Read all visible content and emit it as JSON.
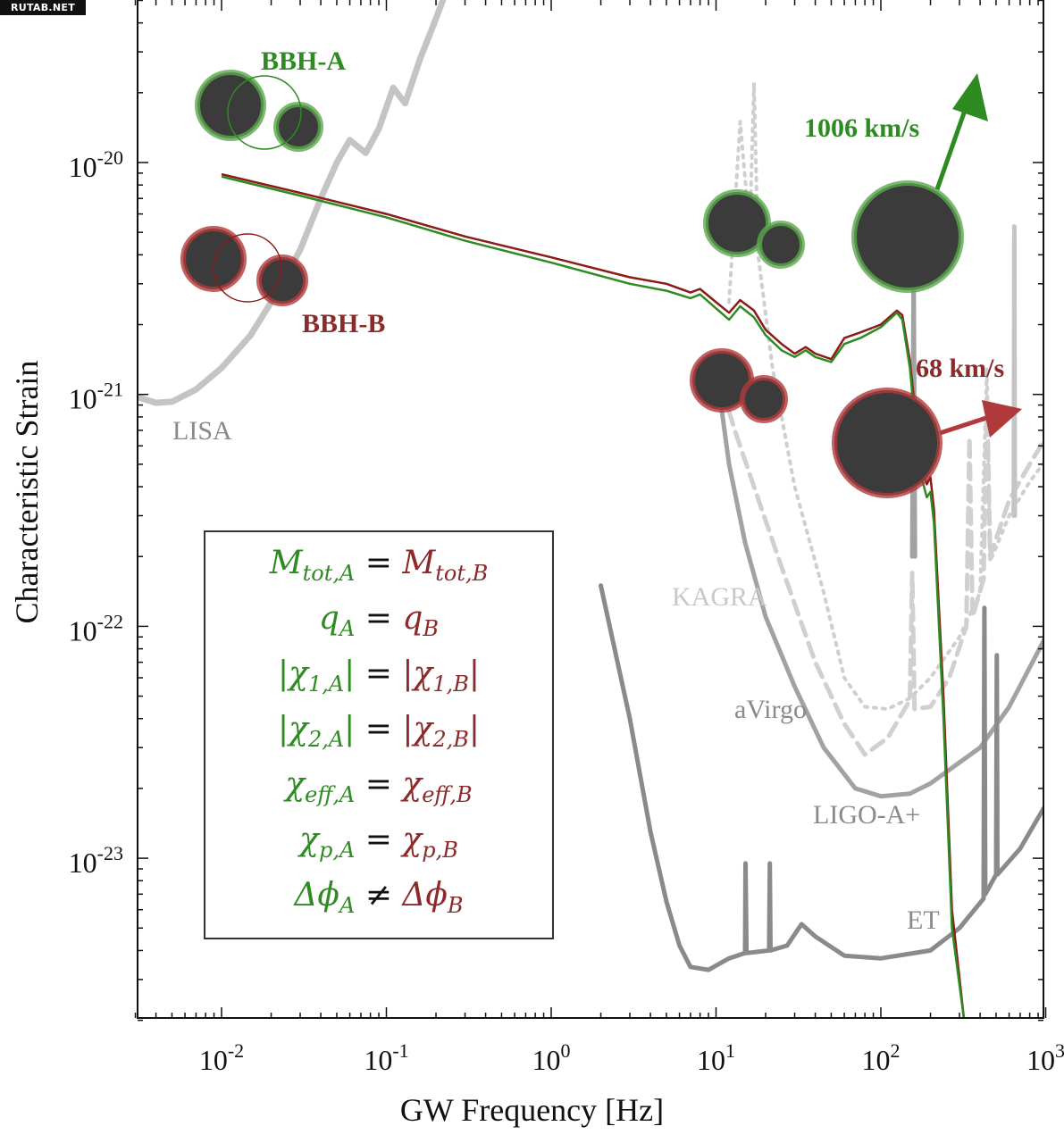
{
  "watermark": "RUTAB.NET",
  "chart_data": {
    "type": "line",
    "xlabel": "GW Frequency [Hz]",
    "ylabel": "Characteristic Strain",
    "x_scale": "log",
    "y_scale": "log",
    "xlim": [
      0.003,
      1000
    ],
    "ylim": [
      2e-24,
      5e-20
    ],
    "x_ticks": [
      {
        "value": 0.01,
        "base": "10",
        "exp": "-2"
      },
      {
        "value": 0.1,
        "base": "10",
        "exp": "-1"
      },
      {
        "value": 1,
        "base": "10",
        "exp": "0"
      },
      {
        "value": 10,
        "base": "10",
        "exp": "1"
      },
      {
        "value": 100,
        "base": "10",
        "exp": "2"
      },
      {
        "value": 1000,
        "base": "10",
        "exp": "3"
      }
    ],
    "y_ticks": [
      {
        "value": 1e-20,
        "base": "10",
        "exp": "-20"
      },
      {
        "value": 1e-21,
        "base": "10",
        "exp": "-21"
      },
      {
        "value": 1e-22,
        "base": "10",
        "exp": "-22"
      },
      {
        "value": 1e-23,
        "base": "10",
        "exp": "-23"
      }
    ],
    "detector_labels": {
      "lisa": "LISA",
      "kagra": "KAGRA",
      "avirgo": "aVirgo",
      "ligo": "LIGO-A+",
      "et": "ET"
    },
    "sensitivity_curves": [
      {
        "name": "LISA",
        "color": "#c4c4c4",
        "style": "solid",
        "points": [
          [
            0.003,
            9.8e-22
          ],
          [
            0.004,
            9.2e-22
          ],
          [
            0.005,
            9.3e-22
          ],
          [
            0.007,
            1.05e-21
          ],
          [
            0.01,
            1.3e-21
          ],
          [
            0.015,
            1.8e-21
          ],
          [
            0.02,
            2.5e-21
          ],
          [
            0.03,
            4.2e-21
          ],
          [
            0.04,
            7e-21
          ],
          [
            0.05,
            1e-20
          ],
          [
            0.06,
            1.25e-20
          ],
          [
            0.075,
            1.1e-20
          ],
          [
            0.09,
            1.4e-20
          ],
          [
            0.11,
            2.1e-20
          ],
          [
            0.13,
            1.8e-20
          ],
          [
            0.16,
            2.8e-20
          ],
          [
            0.19,
            3.8e-20
          ],
          [
            0.22,
            5e-20
          ]
        ]
      },
      {
        "name": "KAGRA",
        "color": "#d0d0d0",
        "style": "dashed",
        "points": [
          [
            10,
            1.3e-21
          ],
          [
            13,
            7e-22
          ],
          [
            17,
            4e-22
          ],
          [
            25,
            1.8e-22
          ],
          [
            40,
            7e-23
          ],
          [
            60,
            3.8e-23
          ],
          [
            80,
            2.8e-23
          ],
          [
            110,
            3.3e-23
          ],
          [
            150,
            4.8e-23
          ],
          [
            155,
            1.7e-22
          ],
          [
            160,
            4.4e-23
          ],
          [
            200,
            4.5e-23
          ],
          [
            260,
            6e-23
          ],
          [
            330,
            1e-22
          ],
          [
            345,
            6.5e-22
          ],
          [
            360,
            1.1e-22
          ],
          [
            420,
            1.6e-22
          ],
          [
            440,
            1e-21
          ],
          [
            460,
            2e-22
          ],
          [
            600,
            3.5e-22
          ],
          [
            800,
            5e-22
          ],
          [
            1000,
            6.5e-22
          ]
        ]
      },
      {
        "name": "aVirgo",
        "color": "#cfcfcf",
        "style": "dotted",
        "points": [
          [
            12,
            2.5e-21
          ],
          [
            14,
            1.5e-20
          ],
          [
            16,
            5e-21
          ],
          [
            17,
            2.2e-20
          ],
          [
            18,
            4e-21
          ],
          [
            22,
            1.3e-21
          ],
          [
            30,
            4e-22
          ],
          [
            45,
            1.4e-22
          ],
          [
            60,
            6e-23
          ],
          [
            80,
            4.5e-23
          ],
          [
            110,
            4.4e-23
          ],
          [
            150,
            4.9e-23
          ],
          [
            200,
            6e-23
          ],
          [
            300,
            9e-23
          ],
          [
            400,
            1.4e-22
          ],
          [
            440,
            1.3e-21
          ],
          [
            460,
            1.9e-22
          ],
          [
            600,
            3e-22
          ],
          [
            800,
            4.2e-22
          ],
          [
            1000,
            5.2e-22
          ]
        ]
      },
      {
        "name": "LIGO-A+",
        "color": "#a2a2a2",
        "style": "solid",
        "points": [
          [
            10,
            1.3e-21
          ],
          [
            12,
            5e-22
          ],
          [
            15,
            2.3e-22
          ],
          [
            20,
            1.1e-22
          ],
          [
            30,
            5.5e-23
          ],
          [
            45,
            3e-23
          ],
          [
            70,
            2e-23
          ],
          [
            100,
            1.85e-23
          ],
          [
            150,
            1.9e-23
          ],
          [
            200,
            2.1e-23
          ],
          [
            280,
            2.5e-23
          ],
          [
            400,
            3e-23
          ],
          [
            600,
            4.5e-23
          ],
          [
            1000,
            9e-23
          ]
        ]
      },
      {
        "name": "LIGO-A+ peak",
        "color": "#a2a2a2",
        "style": "solid",
        "points": [
          [
            155,
            2e-22
          ],
          [
            158,
            3.8e-21
          ],
          [
            161,
            2e-22
          ]
        ]
      },
      {
        "name": "LIGO-A+ peak",
        "color": "#c4c4c4",
        "style": "solid",
        "points": [
          [
            640,
            3e-22
          ],
          [
            645,
            5.3e-21
          ],
          [
            650,
            3e-22
          ]
        ]
      },
      {
        "name": "ET",
        "color": "#8a8a8a",
        "style": "solid",
        "points": [
          [
            2,
            1.5e-22
          ],
          [
            3,
            4e-23
          ],
          [
            4,
            1.3e-23
          ],
          [
            5,
            6.5e-24
          ],
          [
            6,
            4.2e-24
          ],
          [
            7,
            3.4e-24
          ],
          [
            9,
            3.3e-24
          ],
          [
            12,
            3.7e-24
          ],
          [
            15,
            3.9e-24
          ],
          [
            15.1,
            9.5e-24
          ],
          [
            15.3,
            3.9e-24
          ],
          [
            21,
            4e-24
          ],
          [
            21.2,
            9.5e-24
          ],
          [
            21.4,
            4e-24
          ],
          [
            27,
            4.2e-24
          ],
          [
            33,
            5.2e-24
          ],
          [
            40,
            4.6e-24
          ],
          [
            60,
            3.8e-24
          ],
          [
            100,
            3.7e-24
          ],
          [
            200,
            4e-24
          ],
          [
            300,
            5e-24
          ],
          [
            420,
            6.7e-24
          ],
          [
            425,
            1.2e-22
          ],
          [
            430,
            7e-24
          ],
          [
            500,
            8.5e-24
          ],
          [
            505,
            7.5e-23
          ],
          [
            510,
            8.5e-24
          ],
          [
            700,
            1.1e-23
          ],
          [
            1000,
            1.7e-23
          ]
        ]
      }
    ],
    "series": [
      {
        "name": "BBH-B",
        "color": "#8b1a1a",
        "points": [
          [
            0.01,
            8.9e-21
          ],
          [
            0.03,
            7.4e-21
          ],
          [
            0.1,
            6e-21
          ],
          [
            0.3,
            4.8e-21
          ],
          [
            1,
            3.9e-21
          ],
          [
            3,
            3.2e-21
          ],
          [
            5,
            3e-21
          ],
          [
            7,
            2.75e-21
          ],
          [
            8,
            2.85e-21
          ],
          [
            10,
            2.5e-21
          ],
          [
            12,
            2.25e-21
          ],
          [
            14,
            2.55e-21
          ],
          [
            17,
            2.3e-21
          ],
          [
            20,
            1.9e-21
          ],
          [
            25,
            1.65e-21
          ],
          [
            30,
            1.5e-21
          ],
          [
            35,
            1.6e-21
          ],
          [
            40,
            1.5e-21
          ],
          [
            50,
            1.42e-21
          ],
          [
            60,
            1.75e-21
          ],
          [
            75,
            1.85e-21
          ],
          [
            100,
            2e-21
          ],
          [
            125,
            2.3e-21
          ],
          [
            135,
            2.2e-21
          ],
          [
            150,
            1.4e-21
          ],
          [
            160,
            9e-22
          ],
          [
            175,
            5e-22
          ],
          [
            190,
            4.1e-22
          ],
          [
            200,
            4.4e-22
          ],
          [
            210,
            3.2e-22
          ],
          [
            240,
            5e-23
          ],
          [
            270,
            6e-24
          ],
          [
            320,
            2e-24
          ]
        ]
      },
      {
        "name": "BBH-A",
        "color": "#2e8b22",
        "points": [
          [
            0.01,
            8.7e-21
          ],
          [
            0.03,
            7.2e-21
          ],
          [
            0.1,
            5.8e-21
          ],
          [
            0.3,
            4.6e-21
          ],
          [
            1,
            3.7e-21
          ],
          [
            3,
            3e-21
          ],
          [
            5,
            2.8e-21
          ],
          [
            7,
            2.6e-21
          ],
          [
            8,
            2.7e-21
          ],
          [
            10,
            2.35e-21
          ],
          [
            12,
            2.1e-21
          ],
          [
            14,
            2.4e-21
          ],
          [
            17,
            2.15e-21
          ],
          [
            20,
            1.8e-21
          ],
          [
            25,
            1.55e-21
          ],
          [
            30,
            1.45e-21
          ],
          [
            35,
            1.55e-21
          ],
          [
            40,
            1.45e-21
          ],
          [
            50,
            1.38e-21
          ],
          [
            60,
            1.65e-21
          ],
          [
            75,
            1.75e-21
          ],
          [
            100,
            1.95e-21
          ],
          [
            125,
            2.25e-21
          ],
          [
            135,
            2.1e-21
          ],
          [
            150,
            1.3e-21
          ],
          [
            160,
            8e-22
          ],
          [
            175,
            4.5e-22
          ],
          [
            190,
            3.6e-22
          ],
          [
            200,
            3.8e-22
          ],
          [
            210,
            2.8e-22
          ],
          [
            240,
            4e-23
          ],
          [
            270,
            5e-24
          ],
          [
            320,
            2e-24
          ]
        ]
      }
    ],
    "annotations": {
      "bbh_a_label": "BBH-A",
      "bbh_b_label": "BBH-B",
      "kick_a": "1006 km/s",
      "kick_b": "68 km/s"
    },
    "legend": {
      "position": "lower-left",
      "lines": [
        {
          "a": "M_tot,A",
          "op": "=",
          "b": "M_tot,B"
        },
        {
          "a": "q_A",
          "op": "=",
          "b": "q_B"
        },
        {
          "a": "|χ_1,A|",
          "op": "=",
          "b": "|χ_1,B|"
        },
        {
          "a": "|χ_2,A|",
          "op": "=",
          "b": "|χ_2,B|"
        },
        {
          "a": "χ_eff,A",
          "op": "=",
          "b": "χ_eff,B"
        },
        {
          "a": "χ_p,A",
          "op": "=",
          "b": "χ_p,B"
        },
        {
          "a": "Δϕ_A",
          "op": "≠",
          "b": "Δϕ_B"
        }
      ]
    }
  }
}
